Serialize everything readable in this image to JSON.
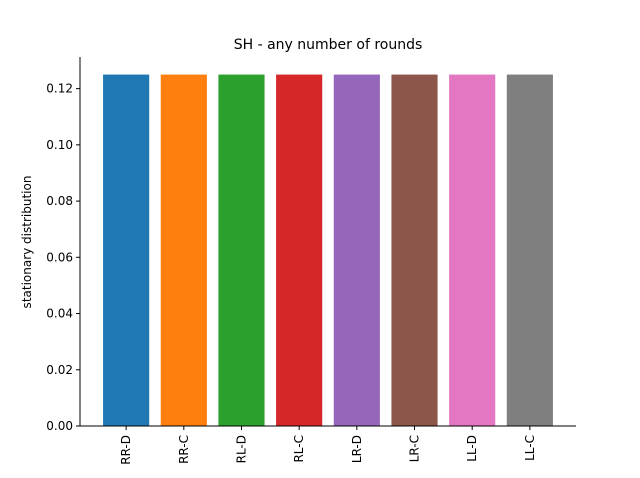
{
  "chart_data": {
    "type": "bar",
    "title": "SH - any number of rounds",
    "xlabel": "",
    "ylabel": "stationary distribution",
    "categories": [
      "RR-D",
      "RR-C",
      "RL-D",
      "RL-C",
      "LR-D",
      "LR-C",
      "LL-D",
      "LL-C"
    ],
    "values": [
      0.125,
      0.125,
      0.125,
      0.125,
      0.125,
      0.125,
      0.125,
      0.125
    ],
    "colors": [
      "#1f77b4",
      "#ff7f0e",
      "#2ca02c",
      "#d62728",
      "#9467bd",
      "#8c564b",
      "#e377c2",
      "#7f7f7f"
    ],
    "ylim": [
      0,
      0.13125
    ],
    "yticks": [
      "0.00",
      "0.02",
      "0.04",
      "0.06",
      "0.08",
      "0.10",
      "0.12"
    ],
    "grid": false,
    "legend": "none"
  }
}
